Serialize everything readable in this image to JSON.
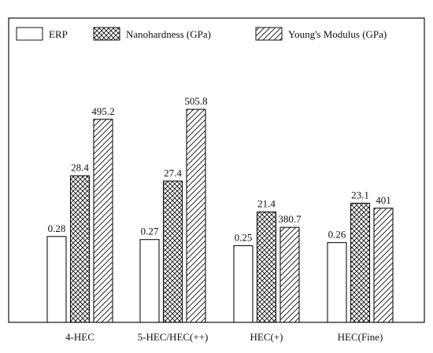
{
  "chart_data": {
    "type": "bar",
    "title": "",
    "xlabel": "",
    "ylabel": "",
    "categories": [
      "4-HEC",
      "5-HEC/HEC(++)",
      "HEC(+)",
      "HEC(Fine)"
    ],
    "series": [
      {
        "name": "ERP",
        "values": [
          0.28,
          0.27,
          0.25,
          0.26
        ],
        "labels": [
          "0.28",
          "0.27",
          "0.25",
          "0.26"
        ],
        "pattern": "solid-white"
      },
      {
        "name": "Nanohardness (GPa)",
        "values": [
          28.4,
          27.4,
          21.4,
          23.1
        ],
        "labels": [
          "28.4",
          "27.4",
          "21.4",
          "23.1"
        ],
        "pattern": "crosshatch"
      },
      {
        "name": "Young's Modulus (GPa)",
        "values": [
          495.2,
          505.8,
          380.7,
          401
        ],
        "labels": [
          "495.2",
          "505.8",
          "380.7",
          "401"
        ],
        "pattern": "diagonal"
      }
    ],
    "grid": false,
    "axis_ticks": false,
    "legend_position": "top",
    "note": "mixed scales; bar heights follow the values as drawn in the original"
  }
}
